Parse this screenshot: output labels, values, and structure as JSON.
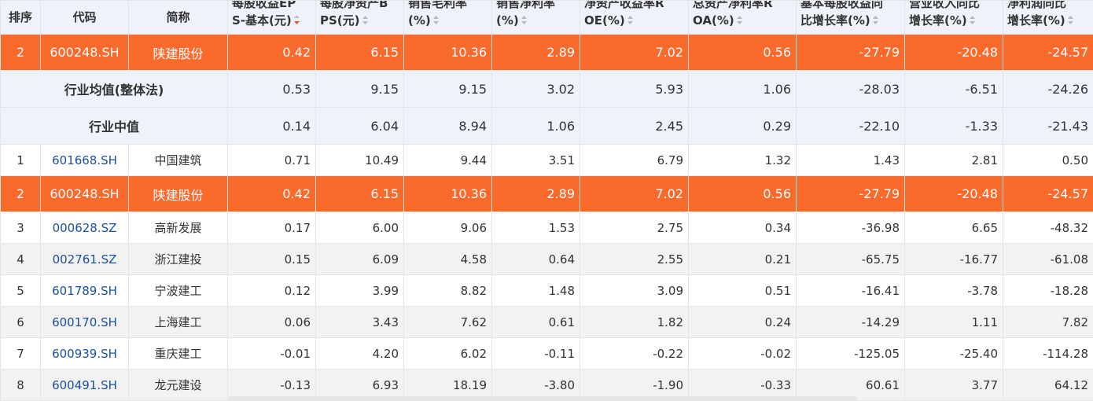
{
  "headers": {
    "rank": "排序",
    "code": "代码",
    "name": "简称",
    "eps": [
      "每股收益EP",
      "S-基本(元)"
    ],
    "bps": [
      "每股净资产B",
      "PS(元)"
    ],
    "gross_margin": [
      "销售毛利率",
      "(%)"
    ],
    "net_margin": [
      "销售净利率",
      "(%)"
    ],
    "roe": [
      "净资产收益率R",
      "OE(%)"
    ],
    "roa": [
      "总资产净利率R",
      "OA(%)"
    ],
    "eps_growth": [
      "基本每股收益同",
      "比增长率(%)"
    ],
    "revenue_growth": [
      "营业收入同比",
      "增长率(%)"
    ],
    "profit_growth": [
      "净利润同比",
      "增长率(%)"
    ]
  },
  "sort_icons": {
    "active": "sort-desc-icon",
    "inactive": "sort-both-icon",
    "active_color": "#e8532b",
    "inactive_color": "#b8b8b8"
  },
  "highlight_row": {
    "rank": "2",
    "code": "600248.SH",
    "name": "陕建股份",
    "values": [
      "0.42",
      "6.15",
      "10.36",
      "2.89",
      "7.02",
      "0.56",
      "-27.79",
      "-20.48",
      "-24.57"
    ]
  },
  "summary_rows": [
    {
      "label": "行业均值(整体法)",
      "values": [
        "0.53",
        "9.15",
        "9.15",
        "3.02",
        "5.93",
        "1.06",
        "-28.03",
        "-6.51",
        "-24.26"
      ]
    },
    {
      "label": "行业中值",
      "values": [
        "0.14",
        "6.04",
        "8.94",
        "1.06",
        "2.45",
        "0.29",
        "-22.10",
        "-1.33",
        "-21.43"
      ]
    }
  ],
  "rows": [
    {
      "rank": "1",
      "code": "601668.SH",
      "name": "中国建筑",
      "values": [
        "0.71",
        "10.49",
        "9.44",
        "3.51",
        "6.79",
        "1.32",
        "1.43",
        "2.81",
        "0.50"
      ]
    },
    {
      "rank": "2",
      "code": "600248.SH",
      "name": "陕建股份",
      "values": [
        "0.42",
        "6.15",
        "10.36",
        "2.89",
        "7.02",
        "0.56",
        "-27.79",
        "-20.48",
        "-24.57"
      ],
      "highlight": true
    },
    {
      "rank": "3",
      "code": "000628.SZ",
      "name": "高新发展",
      "values": [
        "0.17",
        "6.00",
        "9.06",
        "1.53",
        "2.75",
        "0.34",
        "-36.98",
        "6.65",
        "-48.32"
      ]
    },
    {
      "rank": "4",
      "code": "002761.SZ",
      "name": "浙江建投",
      "values": [
        "0.15",
        "6.09",
        "4.58",
        "0.64",
        "2.55",
        "0.21",
        "-65.75",
        "-16.77",
        "-61.08"
      ]
    },
    {
      "rank": "5",
      "code": "601789.SH",
      "name": "宁波建工",
      "values": [
        "0.12",
        "3.99",
        "8.82",
        "1.48",
        "3.09",
        "0.51",
        "-16.41",
        "-3.78",
        "-18.28"
      ]
    },
    {
      "rank": "6",
      "code": "600170.SH",
      "name": "上海建工",
      "values": [
        "0.06",
        "3.43",
        "7.62",
        "0.61",
        "1.82",
        "0.24",
        "-14.29",
        "1.11",
        "7.82"
      ]
    },
    {
      "rank": "7",
      "code": "600939.SH",
      "name": "重庆建工",
      "values": [
        "-0.01",
        "4.20",
        "6.02",
        "-0.11",
        "-0.22",
        "-0.02",
        "-125.05",
        "-25.40",
        "-114.28"
      ]
    },
    {
      "rank": "8",
      "code": "600491.SH",
      "name": "龙元建设",
      "values": [
        "-0.13",
        "6.93",
        "18.19",
        "-3.80",
        "-1.90",
        "-0.33",
        "60.61",
        "3.77",
        "64.12"
      ]
    }
  ],
  "colors": {
    "highlight": "#fa6a2c",
    "header_bg": "#eef3fb",
    "zebra": "#f2f2f2",
    "code_link": "#1a4f9c"
  }
}
